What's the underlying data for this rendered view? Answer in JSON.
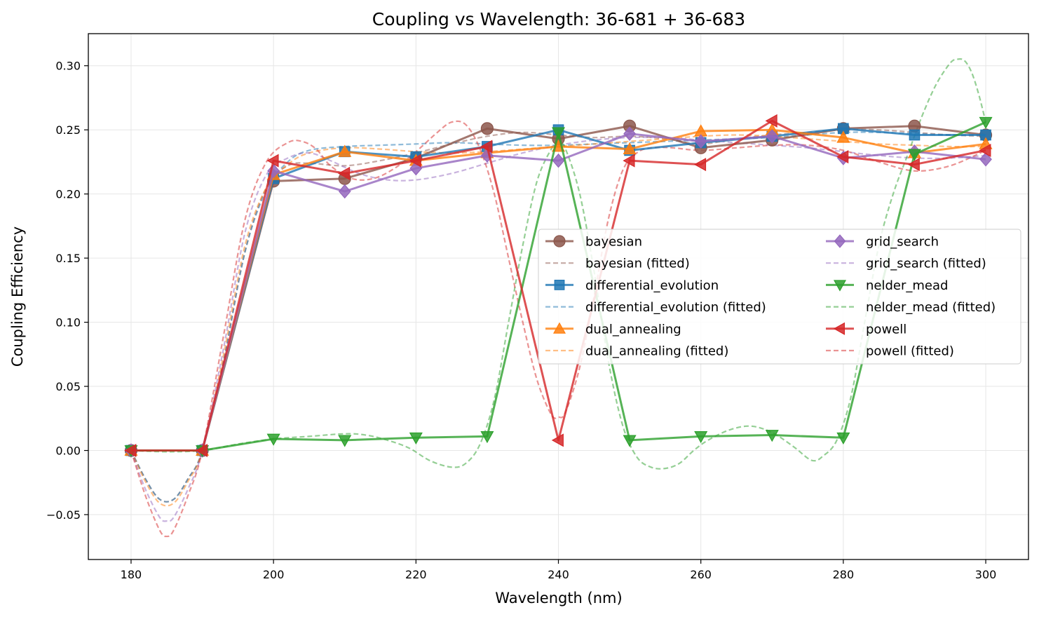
{
  "chart_data": {
    "type": "line",
    "title": "Coupling vs Wavelength: 36-681 + 36-683",
    "xlabel": "Wavelength (nm)",
    "ylabel": "Coupling Efficiency",
    "xlim": [
      174,
      306
    ],
    "ylim": [
      -0.085,
      0.325
    ],
    "xticks": [
      180,
      200,
      220,
      240,
      260,
      280,
      300
    ],
    "xtick_labels": [
      "180",
      "200",
      "220",
      "240",
      "260",
      "280",
      "300"
    ],
    "yticks": [
      -0.05,
      0,
      0.05,
      0.1,
      0.15,
      0.2,
      0.25,
      0.3
    ],
    "ytick_labels": [
      "−0.05",
      "0.00",
      "0.05",
      "0.10",
      "0.15",
      "0.20",
      "0.25",
      "0.30"
    ],
    "grid": true,
    "legend_position": "center-right",
    "x": [
      180,
      190,
      200,
      210,
      220,
      230,
      240,
      250,
      260,
      270,
      280,
      290,
      300
    ],
    "series": [
      {
        "name": "bayesian",
        "fitted_name": "bayesian (fitted)",
        "color": "#8c564b",
        "marker": "circle",
        "values": [
          0.0,
          0.0,
          0.21,
          0.212,
          0.228,
          0.251,
          0.243,
          0.253,
          0.236,
          0.242,
          0.251,
          0.253,
          0.246
        ],
        "fitted": [
          [
            180,
            0.0
          ],
          [
            182,
            -0.022
          ],
          [
            184,
            -0.038
          ],
          [
            186,
            -0.038
          ],
          [
            188,
            -0.022
          ],
          [
            190,
            0.0
          ],
          [
            193,
            0.07
          ],
          [
            196,
            0.155
          ],
          [
            199,
            0.205
          ],
          [
            202,
            0.222
          ],
          [
            205,
            0.224
          ],
          [
            210,
            0.222
          ],
          [
            215,
            0.226
          ],
          [
            220,
            0.232
          ],
          [
            225,
            0.239
          ],
          [
            230,
            0.245
          ],
          [
            235,
            0.248
          ],
          [
            240,
            0.246
          ],
          [
            245,
            0.244
          ],
          [
            250,
            0.245
          ],
          [
            255,
            0.243
          ],
          [
            260,
            0.239
          ],
          [
            265,
            0.243
          ],
          [
            270,
            0.246
          ],
          [
            275,
            0.248
          ],
          [
            280,
            0.25
          ],
          [
            285,
            0.25
          ],
          [
            290,
            0.248
          ],
          [
            295,
            0.246
          ],
          [
            300,
            0.245
          ]
        ]
      },
      {
        "name": "differential_evolution",
        "fitted_name": "differential_evolution (fitted)",
        "color": "#1f77b4",
        "marker": "square",
        "values": [
          0.0,
          0.0,
          0.212,
          0.233,
          0.229,
          0.237,
          0.25,
          0.234,
          0.24,
          0.245,
          0.251,
          0.246,
          0.246
        ],
        "fitted": [
          [
            180,
            0.0
          ],
          [
            182,
            -0.022
          ],
          [
            184,
            -0.038
          ],
          [
            186,
            -0.038
          ],
          [
            188,
            -0.022
          ],
          [
            190,
            0.0
          ],
          [
            193,
            0.07
          ],
          [
            196,
            0.155
          ],
          [
            199,
            0.203
          ],
          [
            202,
            0.225
          ],
          [
            205,
            0.234
          ],
          [
            210,
            0.237
          ],
          [
            215,
            0.238
          ],
          [
            220,
            0.239
          ],
          [
            225,
            0.24
          ],
          [
            230,
            0.239
          ],
          [
            235,
            0.238
          ],
          [
            240,
            0.238
          ],
          [
            245,
            0.239
          ],
          [
            250,
            0.24
          ],
          [
            255,
            0.241
          ],
          [
            260,
            0.242
          ],
          [
            265,
            0.243
          ],
          [
            270,
            0.244
          ],
          [
            275,
            0.246
          ],
          [
            280,
            0.248
          ],
          [
            285,
            0.248
          ],
          [
            290,
            0.247
          ],
          [
            295,
            0.246
          ],
          [
            300,
            0.246
          ]
        ]
      },
      {
        "name": "dual_annealing",
        "fitted_name": "dual_annealing (fitted)",
        "color": "#ff7f0e",
        "marker": "triangle-up",
        "values": [
          0.0,
          0.0,
          0.215,
          0.233,
          0.226,
          0.232,
          0.237,
          0.235,
          0.249,
          0.25,
          0.244,
          0.232,
          0.239
        ],
        "fitted": [
          [
            180,
            0.0
          ],
          [
            182,
            -0.024
          ],
          [
            184,
            -0.041
          ],
          [
            186,
            -0.041
          ],
          [
            188,
            -0.024
          ],
          [
            190,
            0.0
          ],
          [
            193,
            0.075
          ],
          [
            196,
            0.16
          ],
          [
            199,
            0.205
          ],
          [
            202,
            0.223
          ],
          [
            205,
            0.232
          ],
          [
            210,
            0.236
          ],
          [
            215,
            0.235
          ],
          [
            220,
            0.233
          ],
          [
            225,
            0.232
          ],
          [
            230,
            0.233
          ],
          [
            235,
            0.235
          ],
          [
            240,
            0.237
          ],
          [
            245,
            0.239
          ],
          [
            250,
            0.241
          ],
          [
            255,
            0.243
          ],
          [
            260,
            0.245
          ],
          [
            265,
            0.246
          ],
          [
            270,
            0.245
          ],
          [
            275,
            0.243
          ],
          [
            280,
            0.241
          ],
          [
            285,
            0.239
          ],
          [
            290,
            0.238
          ],
          [
            295,
            0.237
          ],
          [
            300,
            0.237
          ]
        ]
      },
      {
        "name": "grid_search",
        "fitted_name": "grid_search (fitted)",
        "color": "#9467bd",
        "marker": "diamond",
        "values": [
          0.0,
          0.0,
          0.218,
          0.202,
          0.22,
          0.23,
          0.226,
          0.247,
          0.241,
          0.245,
          0.228,
          0.233,
          0.227
        ],
        "fitted": [
          [
            180,
            0.0
          ],
          [
            182,
            -0.03
          ],
          [
            184,
            -0.052
          ],
          [
            185,
            -0.055
          ],
          [
            186,
            -0.052
          ],
          [
            188,
            -0.03
          ],
          [
            190,
            0.0
          ],
          [
            193,
            0.08
          ],
          [
            196,
            0.17
          ],
          [
            199,
            0.215
          ],
          [
            202,
            0.228
          ],
          [
            205,
            0.232
          ],
          [
            208,
            0.226
          ],
          [
            212,
            0.216
          ],
          [
            216,
            0.211
          ],
          [
            220,
            0.211
          ],
          [
            225,
            0.216
          ],
          [
            230,
            0.224
          ],
          [
            235,
            0.232
          ],
          [
            240,
            0.238
          ],
          [
            245,
            0.242
          ],
          [
            250,
            0.244
          ],
          [
            255,
            0.244
          ],
          [
            260,
            0.242
          ],
          [
            265,
            0.24
          ],
          [
            270,
            0.238
          ],
          [
            275,
            0.236
          ],
          [
            280,
            0.233
          ],
          [
            285,
            0.23
          ],
          [
            290,
            0.228
          ],
          [
            295,
            0.228
          ],
          [
            300,
            0.23
          ]
        ]
      },
      {
        "name": "nelder_mead",
        "fitted_name": "nelder_mead (fitted)",
        "color": "#2ca02c",
        "marker": "triangle-down",
        "values": [
          0.0,
          0.0,
          0.009,
          0.008,
          0.01,
          0.011,
          0.248,
          0.008,
          0.011,
          0.012,
          0.01,
          0.231,
          0.256
        ],
        "fitted": [
          [
            180,
            0.0
          ],
          [
            185,
            -0.001
          ],
          [
            190,
            0.0
          ],
          [
            195,
            0.005
          ],
          [
            200,
            0.009
          ],
          [
            205,
            0.011
          ],
          [
            210,
            0.013
          ],
          [
            213,
            0.012
          ],
          [
            216,
            0.008
          ],
          [
            219,
            0.002
          ],
          [
            222,
            -0.008
          ],
          [
            225,
            -0.013
          ],
          [
            227,
            -0.01
          ],
          [
            229,
            0.005
          ],
          [
            231,
            0.04
          ],
          [
            233,
            0.1
          ],
          [
            235,
            0.16
          ],
          [
            237,
            0.21
          ],
          [
            239,
            0.235
          ],
          [
            240,
            0.24
          ],
          [
            241,
            0.235
          ],
          [
            243,
            0.2
          ],
          [
            245,
            0.14
          ],
          [
            247,
            0.07
          ],
          [
            249,
            0.02
          ],
          [
            251,
            -0.005
          ],
          [
            253,
            -0.013
          ],
          [
            255,
            -0.014
          ],
          [
            257,
            -0.01
          ],
          [
            259,
            0.0
          ],
          [
            261,
            0.008
          ],
          [
            264,
            0.016
          ],
          [
            267,
            0.019
          ],
          [
            270,
            0.014
          ],
          [
            273,
            0.003
          ],
          [
            275,
            -0.006
          ],
          [
            276,
            -0.008
          ],
          [
            277,
            -0.005
          ],
          [
            279,
            0.007
          ],
          [
            281,
            0.04
          ],
          [
            283,
            0.1
          ],
          [
            285,
            0.16
          ],
          [
            287,
            0.2
          ],
          [
            289,
            0.23
          ],
          [
            291,
            0.26
          ],
          [
            293,
            0.285
          ],
          [
            295,
            0.302
          ],
          [
            296,
            0.305
          ],
          [
            297,
            0.304
          ],
          [
            298,
            0.295
          ],
          [
            299,
            0.278
          ],
          [
            300,
            0.256
          ]
        ]
      },
      {
        "name": "powell",
        "fitted_name": "powell (fitted)",
        "color": "#d62728",
        "marker": "triangle-left",
        "values": [
          0.0,
          0.0,
          0.226,
          0.216,
          0.226,
          0.237,
          0.008,
          0.226,
          0.223,
          0.257,
          0.229,
          0.223,
          0.234
        ],
        "fitted": [
          [
            180,
            0.0
          ],
          [
            182,
            -0.035
          ],
          [
            184,
            -0.062
          ],
          [
            185,
            -0.067
          ],
          [
            186,
            -0.062
          ],
          [
            188,
            -0.035
          ],
          [
            190,
            0.0
          ],
          [
            193,
            0.09
          ],
          [
            196,
            0.18
          ],
          [
            199,
            0.225
          ],
          [
            202,
            0.24
          ],
          [
            204,
            0.241
          ],
          [
            206,
            0.235
          ],
          [
            208,
            0.222
          ],
          [
            211,
            0.212
          ],
          [
            214,
            0.212
          ],
          [
            217,
            0.22
          ],
          [
            220,
            0.233
          ],
          [
            223,
            0.248
          ],
          [
            225,
            0.256
          ],
          [
            227,
            0.254
          ],
          [
            229,
            0.235
          ],
          [
            231,
            0.2
          ],
          [
            233,
            0.15
          ],
          [
            235,
            0.1
          ],
          [
            237,
            0.055
          ],
          [
            239,
            0.028
          ],
          [
            240,
            0.026
          ],
          [
            241,
            0.03
          ],
          [
            243,
            0.065
          ],
          [
            245,
            0.12
          ],
          [
            247,
            0.18
          ],
          [
            249,
            0.218
          ],
          [
            251,
            0.232
          ],
          [
            253,
            0.236
          ],
          [
            256,
            0.236
          ],
          [
            260,
            0.234
          ],
          [
            265,
            0.236
          ],
          [
            270,
            0.238
          ],
          [
            275,
            0.238
          ],
          [
            280,
            0.234
          ],
          [
            285,
            0.225
          ],
          [
            290,
            0.218
          ],
          [
            295,
            0.222
          ],
          [
            300,
            0.234
          ]
        ]
      }
    ]
  }
}
